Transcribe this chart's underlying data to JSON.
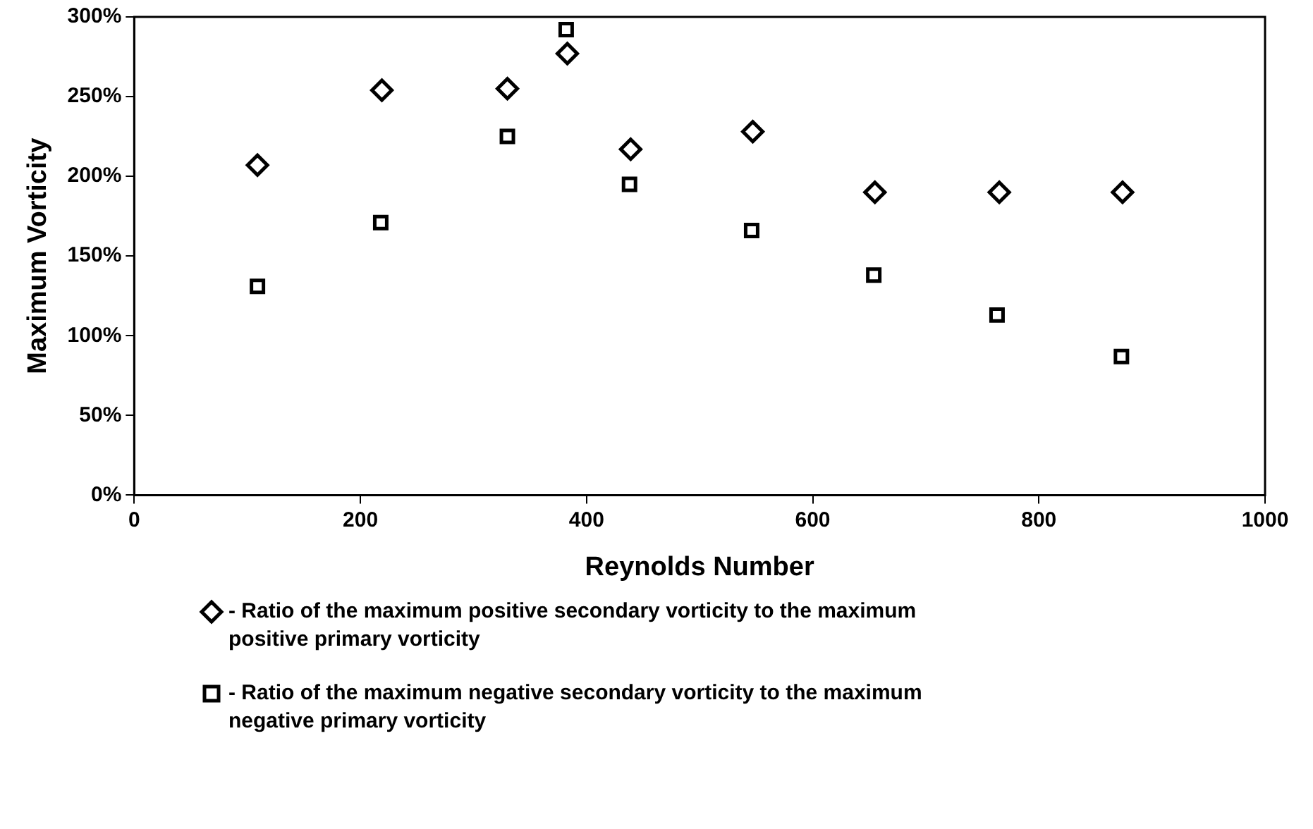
{
  "chart_data": {
    "type": "scatter",
    "xlabel": "Reynolds Number",
    "ylabel": "Maximum Vorticity",
    "xlim": [
      0,
      1000
    ],
    "xticks": [
      0,
      200,
      400,
      600,
      800,
      1000
    ],
    "ylim": [
      0,
      300
    ],
    "yticks": [
      {
        "value": 0,
        "label": "0%"
      },
      {
        "value": 50,
        "label": "50%"
      },
      {
        "value": 100,
        "label": "100%"
      },
      {
        "value": 150,
        "label": "150%"
      },
      {
        "value": 200,
        "label": "200%"
      },
      {
        "value": 250,
        "label": "250%"
      },
      {
        "value": 300,
        "label": "300%"
      }
    ],
    "grid": false,
    "legend": "bottom",
    "series": [
      {
        "name": "- Ratio of the maximum positive secondary vorticity to the maximum positive primary vorticity",
        "color": "#000000",
        "marker": "diamond",
        "x": [
          109,
          219,
          330,
          383,
          439,
          547,
          655,
          765,
          874
        ],
        "values": [
          207,
          254,
          255,
          277,
          217,
          228,
          190,
          190,
          190
        ]
      },
      {
        "name": "- Ratio of the maximum negative secondary vorticity to the maximum negative primary vorticity",
        "color": "#000000",
        "marker": "square",
        "x": [
          109,
          218,
          330,
          382,
          438,
          546,
          654,
          763,
          873
        ],
        "values": [
          131,
          171,
          225,
          292,
          195,
          166,
          138,
          113,
          87
        ]
      }
    ]
  }
}
